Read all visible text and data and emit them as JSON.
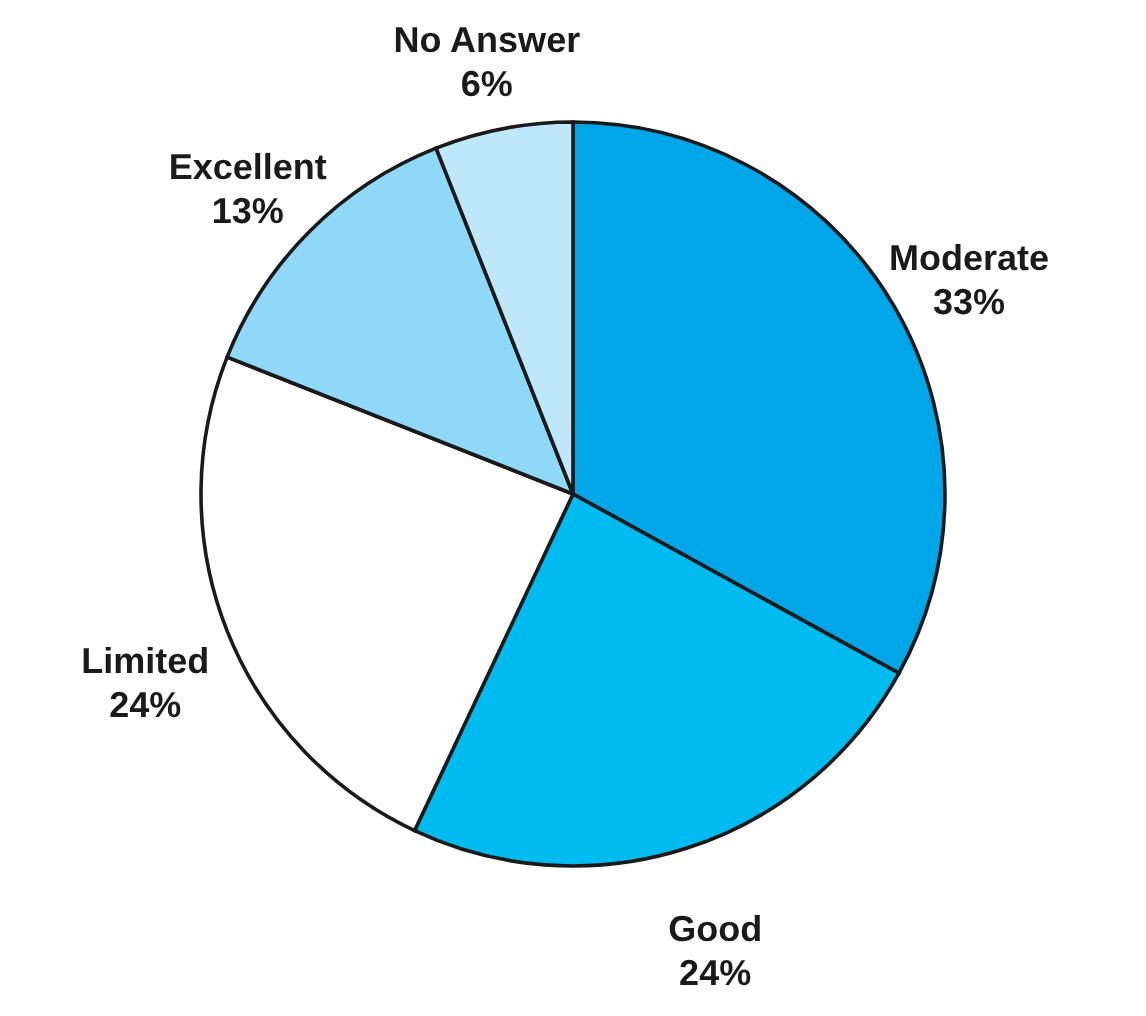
{
  "chart_data": {
    "type": "pie",
    "categories": [
      "Moderate",
      "Good",
      "Limited",
      "Excellent",
      "No Answer"
    ],
    "values": [
      33,
      24,
      24,
      13,
      6
    ],
    "value_labels": [
      "33%",
      "24%",
      "24%",
      "13%",
      "6%"
    ],
    "colors": [
      "#00a6e8",
      "#00bbef",
      "#ffffff",
      "#8fd8f8",
      "#bfe7fa"
    ]
  }
}
